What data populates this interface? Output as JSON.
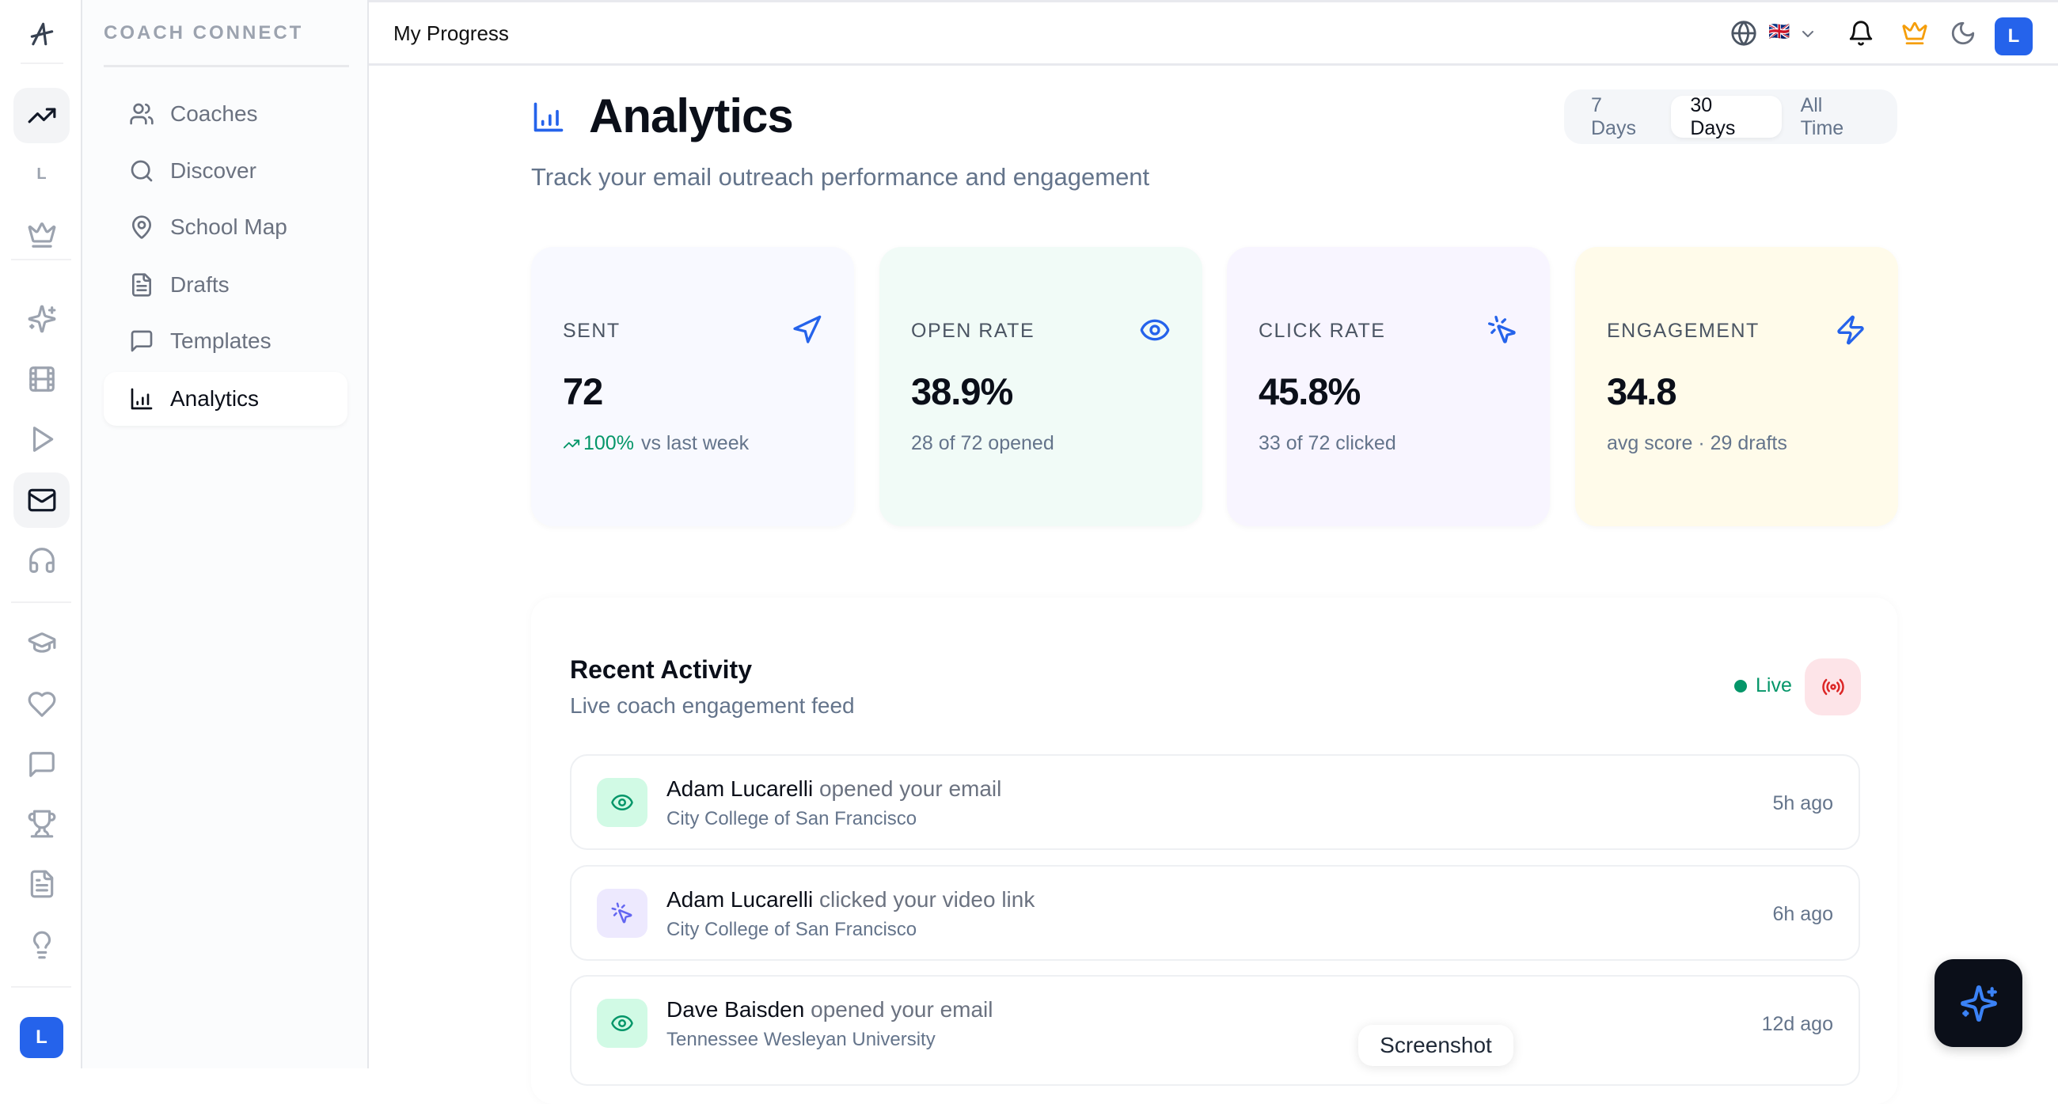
{
  "rail": {
    "logo_icon": "athlete-logo",
    "items": [
      {
        "icon": "trending-up",
        "active": true
      },
      {
        "letter": "L"
      },
      {
        "icon": "crown"
      },
      {
        "icon": "sparkles"
      },
      {
        "icon": "film"
      },
      {
        "icon": "play"
      },
      {
        "icon": "mail",
        "active": true
      },
      {
        "icon": "headphones"
      },
      {
        "icon": "graduation-cap"
      },
      {
        "icon": "heart"
      },
      {
        "icon": "message-square"
      },
      {
        "icon": "trophy"
      },
      {
        "icon": "file-text"
      },
      {
        "icon": "lightbulb"
      }
    ],
    "avatar": "L"
  },
  "sidebar": {
    "brand": "COACH CONNECT",
    "items": [
      {
        "label": "Coaches",
        "icon": "users"
      },
      {
        "label": "Discover",
        "icon": "search"
      },
      {
        "label": "School Map",
        "icon": "map-pin"
      },
      {
        "label": "Drafts",
        "icon": "file-text"
      },
      {
        "label": "Templates",
        "icon": "message-square"
      },
      {
        "label": "Analytics",
        "icon": "bar-chart",
        "active": true
      }
    ]
  },
  "header": {
    "title": "My Progress",
    "language_flag": "🇬🇧",
    "avatar": "L",
    "crown_color": "#f59e0b"
  },
  "main": {
    "title": "Analytics",
    "subtitle": "Track your email outreach performance and engagement",
    "ranges": [
      {
        "label": "7 Days"
      },
      {
        "label": "30 Days",
        "active": true
      },
      {
        "label": "All Time"
      }
    ],
    "stats": [
      {
        "label": "SENT",
        "value": "72",
        "trend": "100%",
        "sub": "vs last week",
        "icon": "send",
        "bg": "#f8f9ff"
      },
      {
        "label": "OPEN RATE",
        "value": "38.9%",
        "sub": "28 of 72 opened",
        "icon": "eye",
        "bg": "#f1fbf7"
      },
      {
        "label": "CLICK RATE",
        "value": "45.8%",
        "sub": "33 of 72 clicked",
        "icon": "mouse-pointer-click",
        "bg": "#f8f5ff"
      },
      {
        "label": "ENGAGEMENT",
        "value": "34.8",
        "sub": "avg score · 29 drafts",
        "icon": "zap",
        "bg": "#fffbea"
      }
    ],
    "activity": {
      "title": "Recent Activity",
      "subtitle": "Live coach engagement feed",
      "live_label": "Live",
      "items": [
        {
          "name": "Adam Lucarelli",
          "action": "opened your email",
          "school": "City College of San Francisco",
          "time": "5h ago",
          "icon": "eye"
        },
        {
          "name": "Adam Lucarelli",
          "action": "clicked your video link",
          "school": "City College of San Francisco",
          "time": "6h ago",
          "icon": "mouse-pointer-click"
        },
        {
          "name": "Dave Baisden",
          "action": "opened your email",
          "school": "Tennessee Wesleyan University",
          "time": "12d ago",
          "icon": "eye"
        }
      ]
    }
  },
  "tooltip": "Screenshot",
  "colors": {
    "accent": "#2563eb",
    "success": "#059669",
    "live_bg": "#fde4e8",
    "live_icon": "#dc2626"
  }
}
